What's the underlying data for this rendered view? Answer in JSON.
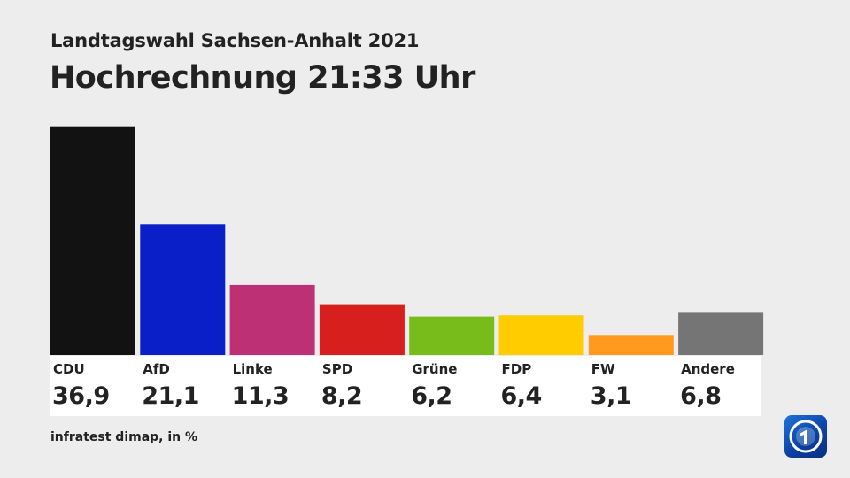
{
  "header": {
    "subtitle": "Landtagswahl Sachsen-Anhalt 2021",
    "title": "Hochrechnung 21:33 Uhr"
  },
  "footer": {
    "source": "infratest dimap, in %"
  },
  "logo": {
    "icon": "ard-tagesschau-logo-icon",
    "color": "#1257c4"
  },
  "chart_data": {
    "type": "bar",
    "title": "Hochrechnung 21:33 Uhr",
    "subtitle": "Landtagswahl Sachsen-Anhalt 2021",
    "xlabel": "",
    "ylabel": "",
    "unit": "%",
    "ylim": [
      0,
      37
    ],
    "grid": false,
    "categories": [
      "CDU",
      "AfD",
      "Linke",
      "SPD",
      "Grüne",
      "FDP",
      "FW",
      "Andere"
    ],
    "values": [
      36.9,
      21.1,
      11.3,
      8.2,
      6.2,
      6.4,
      3.1,
      6.8
    ],
    "value_labels": [
      "36,9",
      "21,1",
      "11,3",
      "8,2",
      "6,2",
      "6,4",
      "3,1",
      "6,8"
    ],
    "colors": [
      "#121212",
      "#0a1fc8",
      "#bd3075",
      "#d71f1d",
      "#78bc1b",
      "#ffcc00",
      "#ff9a1f",
      "#757575"
    ]
  }
}
